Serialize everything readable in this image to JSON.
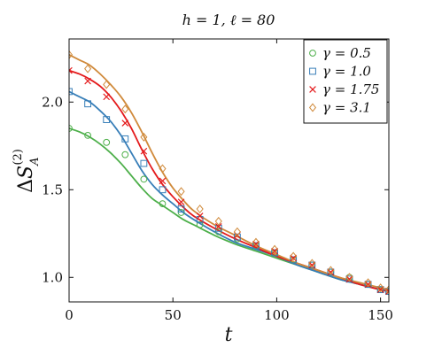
{
  "chart_data": {
    "type": "line",
    "title": "h = 1, ℓ = 80",
    "xlabel": "t",
    "ylabel": "ΔS_A^(2)",
    "xlim": [
      0,
      154
    ],
    "ylim": [
      0.86,
      2.36
    ],
    "xticks": [
      0,
      50,
      100,
      150
    ],
    "yticks": [
      1.0,
      1.5,
      2.0
    ],
    "xtick_labels": [
      "0",
      "50",
      "100",
      "150"
    ],
    "ytick_labels": [
      "1.0",
      "1.5",
      "2.0"
    ],
    "legend_position": "top-right",
    "grid": false,
    "t_curve": [
      0,
      5,
      10,
      15,
      20,
      25,
      30,
      35,
      40,
      45,
      50,
      55,
      60,
      70,
      80,
      90,
      100,
      110,
      120,
      130,
      140,
      150,
      154
    ],
    "t_markers": [
      0,
      9,
      18,
      27,
      36,
      45,
      54,
      63,
      72,
      81,
      90,
      99,
      108,
      117,
      126,
      135,
      144,
      150,
      154
    ],
    "series": [
      {
        "name": "γ = 0.5",
        "color": "#4daf4a",
        "marker": "circle",
        "curve": [
          1.85,
          1.83,
          1.8,
          1.76,
          1.71,
          1.65,
          1.58,
          1.51,
          1.45,
          1.41,
          1.37,
          1.33,
          1.3,
          1.24,
          1.19,
          1.15,
          1.11,
          1.07,
          1.03,
          0.99,
          0.96,
          0.93,
          0.92
        ],
        "markers": [
          1.85,
          1.81,
          1.77,
          1.7,
          1.56,
          1.42,
          1.37,
          1.3,
          1.26,
          1.22,
          1.18,
          1.14,
          1.1,
          1.07,
          1.03,
          1.0,
          0.96,
          0.93,
          0.92
        ]
      },
      {
        "name": "γ = 1.0",
        "color": "#377eb8",
        "marker": "square",
        "curve": [
          2.06,
          2.03,
          2.0,
          1.95,
          1.89,
          1.81,
          1.71,
          1.61,
          1.53,
          1.47,
          1.42,
          1.37,
          1.33,
          1.26,
          1.2,
          1.16,
          1.12,
          1.07,
          1.03,
          0.99,
          0.96,
          0.93,
          0.92
        ],
        "markers": [
          2.06,
          1.99,
          1.9,
          1.79,
          1.65,
          1.5,
          1.39,
          1.33,
          1.28,
          1.23,
          1.18,
          1.14,
          1.1,
          1.07,
          1.03,
          0.99,
          0.96,
          0.93,
          0.92
        ]
      },
      {
        "name": "γ = 1.75",
        "color": "#e41a1c",
        "marker": "x",
        "curve": [
          2.18,
          2.16,
          2.13,
          2.09,
          2.03,
          1.95,
          1.85,
          1.73,
          1.62,
          1.53,
          1.46,
          1.4,
          1.35,
          1.28,
          1.22,
          1.17,
          1.12,
          1.08,
          1.04,
          1.0,
          0.96,
          0.93,
          0.92
        ],
        "markers": [
          2.18,
          2.12,
          2.03,
          1.88,
          1.72,
          1.55,
          1.43,
          1.35,
          1.29,
          1.24,
          1.19,
          1.15,
          1.11,
          1.07,
          1.03,
          0.99,
          0.96,
          0.93,
          0.92
        ]
      },
      {
        "name": "γ = 3.1",
        "color": "#d08a3b",
        "marker": "diamond",
        "curve": [
          2.27,
          2.24,
          2.21,
          2.16,
          2.1,
          2.03,
          1.94,
          1.83,
          1.71,
          1.6,
          1.51,
          1.44,
          1.38,
          1.3,
          1.24,
          1.18,
          1.13,
          1.08,
          1.04,
          1.0,
          0.97,
          0.94,
          0.93
        ],
        "markers": [
          2.27,
          2.19,
          2.1,
          1.96,
          1.8,
          1.62,
          1.49,
          1.39,
          1.32,
          1.26,
          1.2,
          1.16,
          1.12,
          1.08,
          1.04,
          1.0,
          0.97,
          0.94,
          0.93
        ]
      }
    ]
  }
}
